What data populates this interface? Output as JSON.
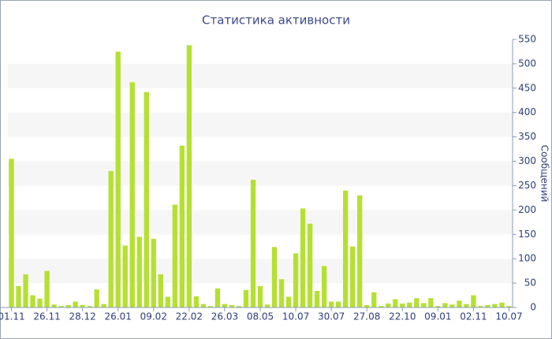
{
  "chart_data": {
    "type": "bar",
    "title": "Статистика активности",
    "y_label": "Сообщений",
    "categories": [
      "01.11",
      null,
      null,
      null,
      null,
      "26.11",
      null,
      null,
      null,
      null,
      "28.12",
      null,
      null,
      null,
      null,
      "26.01",
      null,
      null,
      null,
      null,
      "09.02",
      null,
      null,
      null,
      null,
      "22.02",
      null,
      null,
      null,
      null,
      "26.03",
      null,
      null,
      null,
      null,
      "08.05",
      null,
      null,
      null,
      null,
      "10.07",
      null,
      null,
      null,
      null,
      "30.07",
      null,
      null,
      null,
      null,
      "27.08",
      null,
      null,
      null,
      null,
      "22.10",
      null,
      null,
      null,
      null,
      "09.01",
      null,
      null,
      null,
      null,
      "02.11",
      null,
      null,
      null,
      null,
      "10.07"
    ],
    "values": [
      305,
      44,
      68,
      25,
      18,
      75,
      6,
      3,
      5,
      12,
      5,
      3,
      37,
      7,
      280,
      525,
      127,
      462,
      145,
      442,
      141,
      68,
      22,
      211,
      332,
      538,
      23,
      7,
      3,
      39,
      7,
      5,
      3,
      36,
      262,
      44,
      6,
      124,
      58,
      22,
      111,
      203,
      172,
      34,
      85,
      12,
      12,
      240,
      125,
      230,
      5,
      31,
      3,
      8,
      17,
      8,
      10,
      19,
      9,
      19,
      3,
      9,
      6,
      14,
      7,
      25,
      3,
      5,
      7,
      10,
      3
    ],
    "color": "#b5e032",
    "ylim": [
      0,
      550
    ],
    "yticks": [
      0,
      50,
      100,
      150,
      200,
      250,
      300,
      350,
      400,
      450,
      500,
      550
    ],
    "grid": true
  }
}
